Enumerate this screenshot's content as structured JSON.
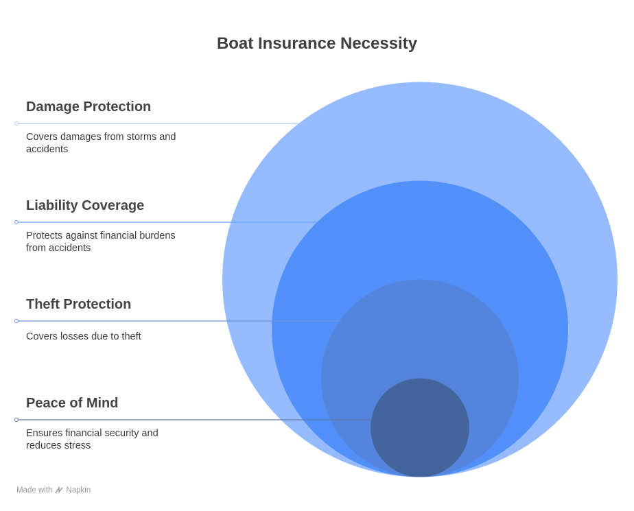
{
  "title": "Boat Insurance Necessity",
  "items": [
    {
      "heading": "Damage Protection",
      "description": "Covers damages from storms and accidents"
    },
    {
      "heading": "Liability Coverage",
      "description": "Protects against financial burdens from accidents"
    },
    {
      "heading": "Theft Protection",
      "description": "Covers losses due to theft"
    },
    {
      "heading": "Peace of Mind",
      "description": "Ensures financial security and reduces stress"
    }
  ],
  "footer": {
    "prefix": "Made with",
    "brand": "Napkin"
  }
}
